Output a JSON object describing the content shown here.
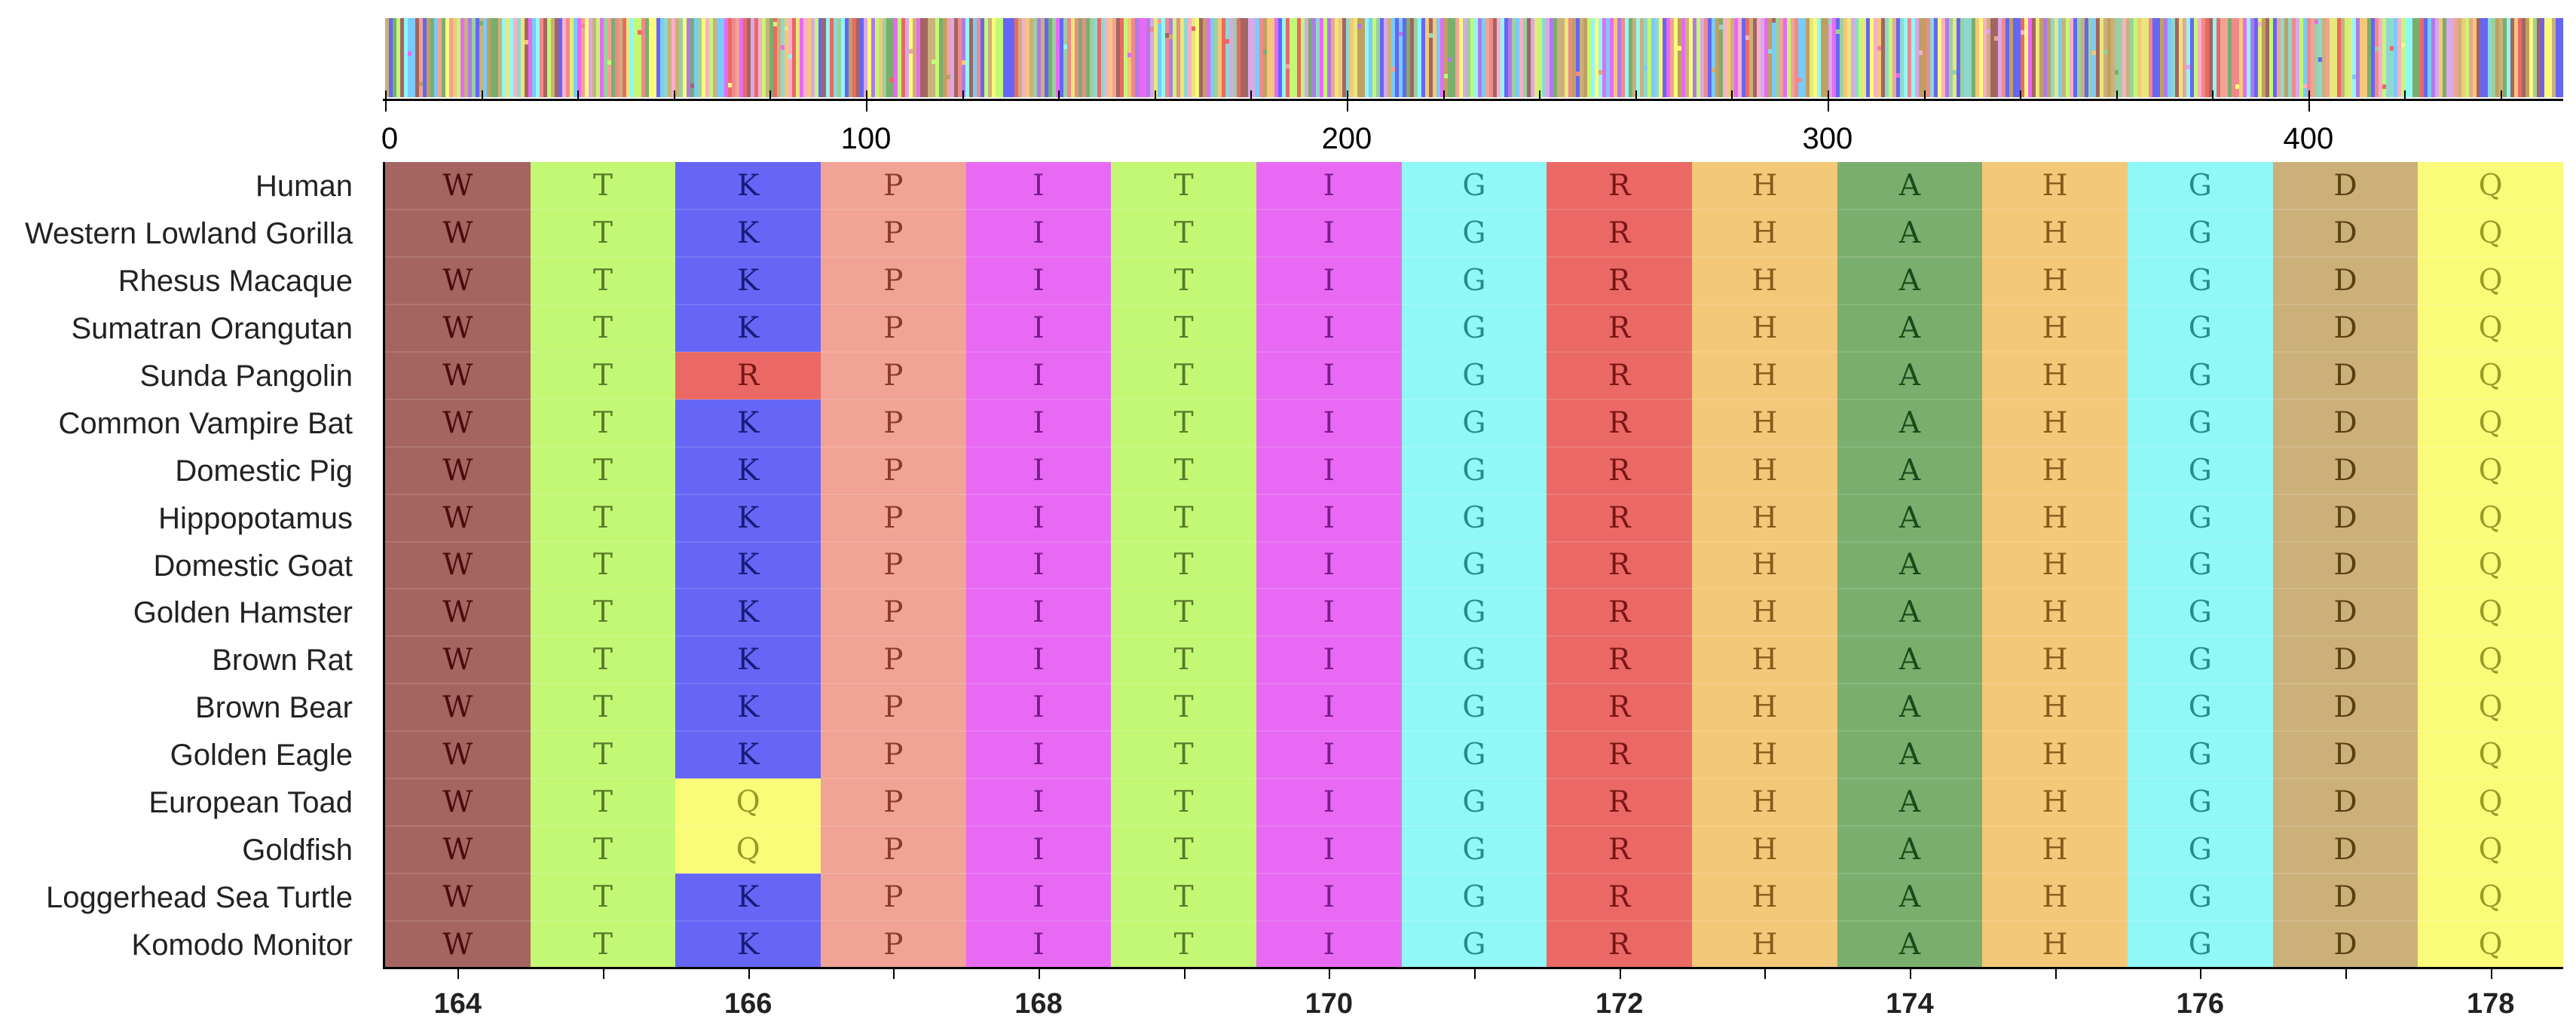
{
  "overview": {
    "ruler_ticks": [
      "0",
      "100",
      "200",
      "300",
      "400"
    ],
    "ruler_values": [
      0,
      100,
      200,
      300,
      400
    ],
    "ruler_max": 453
  },
  "alignment": {
    "species": [
      "Human",
      "Western Lowland Gorilla",
      "Rhesus Macaque",
      "Sumatran Orangutan",
      "Sunda Pangolin",
      "Common Vampire Bat",
      "Domestic Pig",
      "Hippopotamus",
      "Domestic Goat",
      "Golden Hamster",
      "Brown Rat",
      "Brown Bear",
      "Golden Eagle",
      "European Toad",
      "Goldfish",
      "Loggerhead Sea Turtle",
      "Komodo Monitor"
    ],
    "positions": [
      164,
      165,
      166,
      167,
      168,
      169,
      170,
      171,
      172,
      173,
      174,
      175,
      176,
      177,
      178
    ],
    "position_labels": [
      "164",
      "166",
      "168",
      "170",
      "172",
      "174",
      "176",
      "178"
    ],
    "consensus": [
      "W",
      "T",
      "K",
      "P",
      "I",
      "T",
      "I",
      "G",
      "R",
      "H",
      "A",
      "H",
      "G",
      "D",
      "Q"
    ],
    "variants": [
      {
        "row": 4,
        "col": 2,
        "residue": "R"
      },
      {
        "row": 13,
        "col": 2,
        "residue": "Q"
      },
      {
        "row": 14,
        "col": 2,
        "residue": "Q"
      }
    ]
  },
  "residue_colors": {
    "W": {
      "bg": "#a46561",
      "fg": "#4a0b0b"
    },
    "T": {
      "bg": "#c2f874",
      "fg": "#5a7a2a"
    },
    "K": {
      "bg": "#6566f5",
      "fg": "#1a1a7a"
    },
    "P": {
      "bg": "#f1a395",
      "fg": "#8a3a2a"
    },
    "I": {
      "bg": "#e86af4",
      "fg": "#7a1a8a"
    },
    "G": {
      "bg": "#90f8f7",
      "fg": "#2a8a8a"
    },
    "R": {
      "bg": "#ea6965",
      "fg": "#7a1515"
    },
    "H": {
      "bg": "#f3c878",
      "fg": "#8a5a1a"
    },
    "A": {
      "bg": "#7aae6d",
      "fg": "#1a4a1a"
    },
    "D": {
      "bg": "#cbb07a",
      "fg": "#5a4010"
    },
    "Q": {
      "bg": "#fbfb7a",
      "fg": "#9a9a2a"
    }
  },
  "overview_palette": [
    "#f08a8a",
    "#c2f874",
    "#6566f5",
    "#f1a395",
    "#e86af4",
    "#90f8f7",
    "#ea6965",
    "#f3c878",
    "#7aae6d",
    "#cbb07a",
    "#fbfb7a",
    "#a46561",
    "#b07ae8",
    "#7acbf8",
    "#e8e87a",
    "#9ad0a0",
    "#d8a8e8",
    "#f8b0c8",
    "#8fd8d0",
    "#c0a060"
  ]
}
